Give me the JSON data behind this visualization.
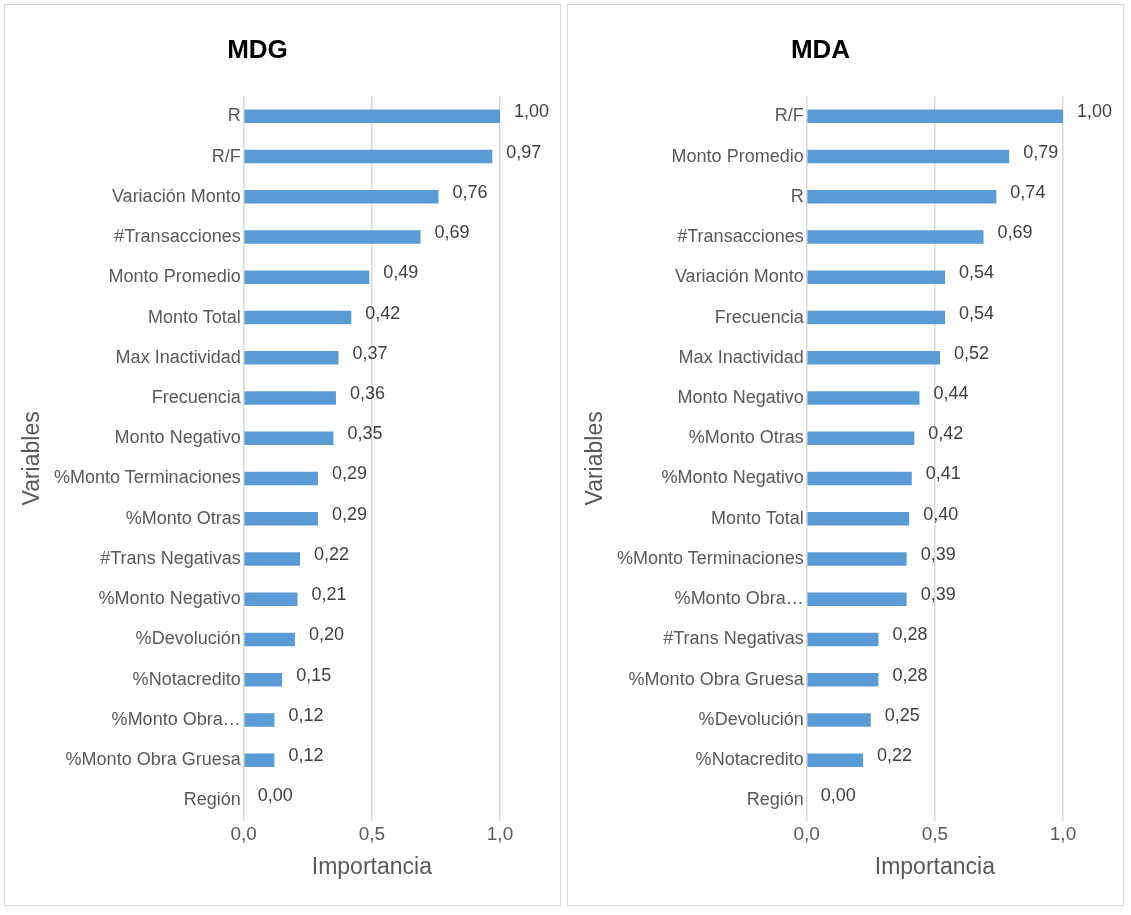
{
  "chart_data": [
    {
      "type": "bar",
      "orientation": "horizontal",
      "title": "MDG",
      "xlabel": "Importancia",
      "ylabel": "Variables",
      "color": "#5b9bd5",
      "grid": "x",
      "xlim": [
        0,
        1
      ],
      "xticks": [
        {
          "value": 0,
          "label": "0,0"
        },
        {
          "value": 0.5,
          "label": "0,5"
        },
        {
          "value": 1,
          "label": "1,0"
        }
      ],
      "categories": [
        "R",
        "R/F",
        "Variación Monto",
        "#Transacciones",
        "Monto Promedio",
        "Monto Total",
        "Max Inactividad",
        "Frecuencia",
        "Monto Negativo",
        "%Monto Terminaciones",
        "%Monto Otras",
        "#Trans Negativas",
        "%Monto Negativo",
        "%Devolución",
        "%Notacredito",
        "%Monto Obra…",
        "%Monto Obra Gruesa",
        "Región"
      ],
      "values": [
        1.0,
        0.97,
        0.76,
        0.69,
        0.49,
        0.42,
        0.37,
        0.36,
        0.35,
        0.29,
        0.29,
        0.22,
        0.21,
        0.2,
        0.15,
        0.12,
        0.12,
        0.0
      ],
      "value_labels": [
        "1,00",
        "0,97",
        "0,76",
        "0,69",
        "0,49",
        "0,42",
        "0,37",
        "0,36",
        "0,35",
        "0,29",
        "0,29",
        "0,22",
        "0,21",
        "0,20",
        "0,15",
        "0,12",
        "0,12",
        "0,00"
      ]
    },
    {
      "type": "bar",
      "orientation": "horizontal",
      "title": "MDA",
      "xlabel": "Importancia",
      "ylabel": "Variables",
      "color": "#5b9bd5",
      "grid": "x",
      "xlim": [
        0,
        1
      ],
      "xticks": [
        {
          "value": 0,
          "label": "0,0"
        },
        {
          "value": 0.5,
          "label": "0,5"
        },
        {
          "value": 1,
          "label": "1,0"
        }
      ],
      "categories": [
        "R/F",
        "Monto Promedio",
        "R",
        "#Transacciones",
        "Variación Monto",
        "Frecuencia",
        "Max Inactividad",
        "Monto Negativo",
        "%Monto Otras",
        "%Monto Negativo",
        "Monto Total",
        "%Monto Terminaciones",
        "%Monto Obra…",
        "#Trans Negativas",
        "%Monto Obra Gruesa",
        "%Devolución",
        "%Notacredito",
        "Región"
      ],
      "values": [
        1.0,
        0.79,
        0.74,
        0.69,
        0.54,
        0.54,
        0.52,
        0.44,
        0.42,
        0.41,
        0.4,
        0.39,
        0.39,
        0.28,
        0.28,
        0.25,
        0.22,
        0.0
      ],
      "value_labels": [
        "1,00",
        "0,79",
        "0,74",
        "0,69",
        "0,54",
        "0,54",
        "0,52",
        "0,44",
        "0,42",
        "0,41",
        "0,40",
        "0,39",
        "0,39",
        "0,28",
        "0,28",
        "0,25",
        "0,22",
        "0,00"
      ]
    }
  ]
}
